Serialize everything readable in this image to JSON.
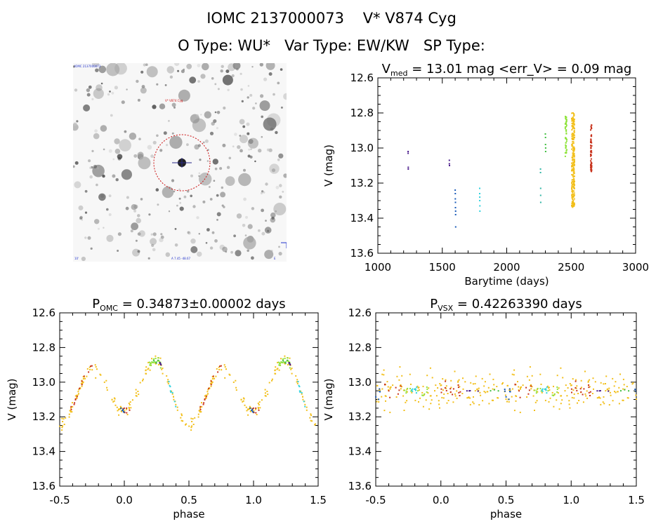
{
  "header": {
    "line1": "IOMC 2137000073    V* V874 Cyg",
    "line2": "O Type: WU*   Var Type: EW/KW   SP Type:"
  },
  "finder": {
    "label_top_left": "IOMC 2137000073",
    "label_star": "V* V874 Cyg",
    "label_bottom_left": "10'",
    "label_bottom_center": "A 7.45  -48.67",
    "label_bottom_right": "E"
  },
  "colors": {
    "purple": "#4b1c8c",
    "blue": "#1a5bb8",
    "cyan": "#2fd2de",
    "teal": "#33b6a6",
    "green": "#3fbe3f",
    "lime": "#8ee33a",
    "gold": "#f2bf1a",
    "orange": "#e88a16",
    "red": "#c8321c",
    "marker": "#cc1111"
  },
  "chart_data": [
    {
      "id": "lc",
      "type": "scatter",
      "title_main": "V",
      "title_sub": "med",
      "title_rest": " = 13.01 mag <err_V> = 0.09 mag",
      "xlabel": "Barytime (days)",
      "ylabel": "V (mag)",
      "xlim": [
        1000,
        3000
      ],
      "ylim": [
        12.6,
        13.6
      ],
      "y_inverted": true,
      "xticks": [
        1000,
        1500,
        2000,
        2500,
        3000
      ],
      "yticks": [
        12.6,
        12.8,
        13.0,
        13.2,
        13.4,
        13.6
      ],
      "ytick_labels": [
        "12.6",
        "12.8",
        "13.0",
        "13.2",
        "13.4",
        "13.6"
      ],
      "series": [
        {
          "color": "purple",
          "x": [
            1235,
            1235,
            1236,
            1236
          ],
          "y": [
            13.02,
            13.03,
            13.11,
            13.12
          ]
        },
        {
          "color": "purple",
          "x": [
            1555,
            1555,
            1556
          ],
          "y": [
            13.07,
            13.09,
            13.1
          ]
        },
        {
          "color": "blue",
          "x": [
            1600,
            1601,
            1601,
            1602,
            1602,
            1603,
            1603,
            1604
          ],
          "y": [
            13.24,
            13.26,
            13.29,
            13.31,
            13.34,
            13.36,
            13.38,
            13.45
          ]
        },
        {
          "color": "cyan",
          "x": [
            1790,
            1790,
            1791,
            1791,
            1792,
            1792
          ],
          "y": [
            13.23,
            13.26,
            13.28,
            13.3,
            13.33,
            13.36
          ]
        },
        {
          "color": "teal",
          "x": [
            2262,
            2262,
            2263,
            2263,
            2264
          ],
          "y": [
            13.12,
            13.14,
            13.23,
            13.27,
            13.31
          ]
        },
        {
          "color": "green",
          "x": [
            2300,
            2301,
            2301,
            2302,
            2302
          ],
          "y": [
            12.92,
            12.94,
            12.98,
            13.0,
            13.02
          ]
        }
      ],
      "bands": [
        {
          "color": "lime",
          "x": 2460,
          "y_from": 12.82,
          "y_to": 13.05,
          "count": 45,
          "jitter": 14
        },
        {
          "color": "gold",
          "x": 2515,
          "y_from": 12.8,
          "y_to": 13.34,
          "count": 230,
          "jitter": 22
        },
        {
          "color": "red",
          "x": 2655,
          "y_from": 12.86,
          "y_to": 13.14,
          "count": 60,
          "jitter": 9
        }
      ]
    },
    {
      "id": "pomc",
      "type": "scatter",
      "title_main": "P",
      "title_sub": "OMC",
      "title_rest": " = 0.34873±0.00002 days",
      "xlabel": "phase",
      "ylabel": "V (mag)",
      "xlim": [
        -0.5,
        1.5
      ],
      "ylim": [
        12.6,
        13.6
      ],
      "y_inverted": true,
      "xticks": [
        -0.5,
        0.0,
        0.5,
        1.0,
        1.5
      ],
      "xtick_labels": [
        "-0.5",
        "0.0",
        "0.5",
        "1.0",
        "1.5"
      ],
      "yticks": [
        12.6,
        12.8,
        13.0,
        13.2,
        13.4,
        13.6
      ],
      "ytick_labels": [
        "12.6",
        "12.8",
        "13.0",
        "13.2",
        "13.4",
        "13.6"
      ],
      "model": "ew_curve",
      "curve_base": 12.93,
      "curve_primary_depth": 0.32,
      "curve_secondary_depth": 0.24,
      "curve_scatter": 0.05,
      "clusters": [
        {
          "color": "gold",
          "phase_from": 0.0,
          "phase_to": 1.0,
          "count": 140,
          "noise": 0.05
        },
        {
          "color": "lime",
          "phase_from": 0.18,
          "phase_to": 0.32,
          "count": 20,
          "noise": 0.03
        },
        {
          "color": "red",
          "phase_from": 0.55,
          "phase_to": 0.75,
          "count": 14,
          "noise": 0.04
        },
        {
          "color": "red",
          "phase_from": 0.95,
          "phase_to": 1.05,
          "count": 6,
          "noise": 0.04
        },
        {
          "color": "cyan",
          "phase_from": 0.34,
          "phase_to": 0.4,
          "count": 8,
          "noise": 0.03
        },
        {
          "color": "blue",
          "phase_from": 0.97,
          "phase_to": 1.0,
          "count": 6,
          "noise": 0.02
        },
        {
          "color": "purple",
          "phase_from": 0.27,
          "phase_to": 0.3,
          "count": 4,
          "noise": 0.01
        },
        {
          "color": "green",
          "phase_from": 0.22,
          "phase_to": 0.27,
          "count": 4,
          "noise": 0.02
        }
      ]
    },
    {
      "id": "pvsx",
      "type": "scatter",
      "title_main": "P",
      "title_sub": "VSX",
      "title_rest": " = 0.42263390 days",
      "xlabel": "phase",
      "ylabel": "V (mag)",
      "xlim": [
        -0.5,
        1.5
      ],
      "ylim": [
        12.6,
        13.6
      ],
      "y_inverted": true,
      "xticks": [
        -0.5,
        0.0,
        0.5,
        1.0,
        1.5
      ],
      "xtick_labels": [
        "-0.5",
        "0.0",
        "0.5",
        "1.0",
        "1.5"
      ],
      "yticks": [
        12.6,
        12.8,
        13.0,
        13.2,
        13.4,
        13.6
      ],
      "ytick_labels": [
        "12.6",
        "12.8",
        "13.0",
        "13.2",
        "13.4",
        "13.6"
      ],
      "model": "scatter_band",
      "band_center": 13.05,
      "band_spread": 0.12,
      "clusters": [
        {
          "color": "gold",
          "phase_from": 0.0,
          "phase_to": 1.0,
          "count": 150,
          "noise": 0.11
        },
        {
          "color": "lime",
          "phase_from": 0.72,
          "phase_to": 0.9,
          "count": 14,
          "noise": 0.03
        },
        {
          "color": "red",
          "phase_from": 0.0,
          "phase_to": 0.15,
          "count": 14,
          "noise": 0.05
        },
        {
          "color": "red",
          "phase_from": 0.56,
          "phase_to": 0.7,
          "count": 8,
          "noise": 0.04
        },
        {
          "color": "cyan",
          "phase_from": 0.77,
          "phase_to": 0.82,
          "count": 8,
          "noise": 0.04
        },
        {
          "color": "blue",
          "phase_from": 0.48,
          "phase_to": 0.54,
          "count": 7,
          "noise": 0.04
        },
        {
          "color": "purple",
          "phase_from": 0.2,
          "phase_to": 0.3,
          "count": 4,
          "noise": 0.01
        },
        {
          "color": "green",
          "phase_from": 0.38,
          "phase_to": 0.45,
          "count": 3,
          "noise": 0.02
        }
      ]
    }
  ]
}
